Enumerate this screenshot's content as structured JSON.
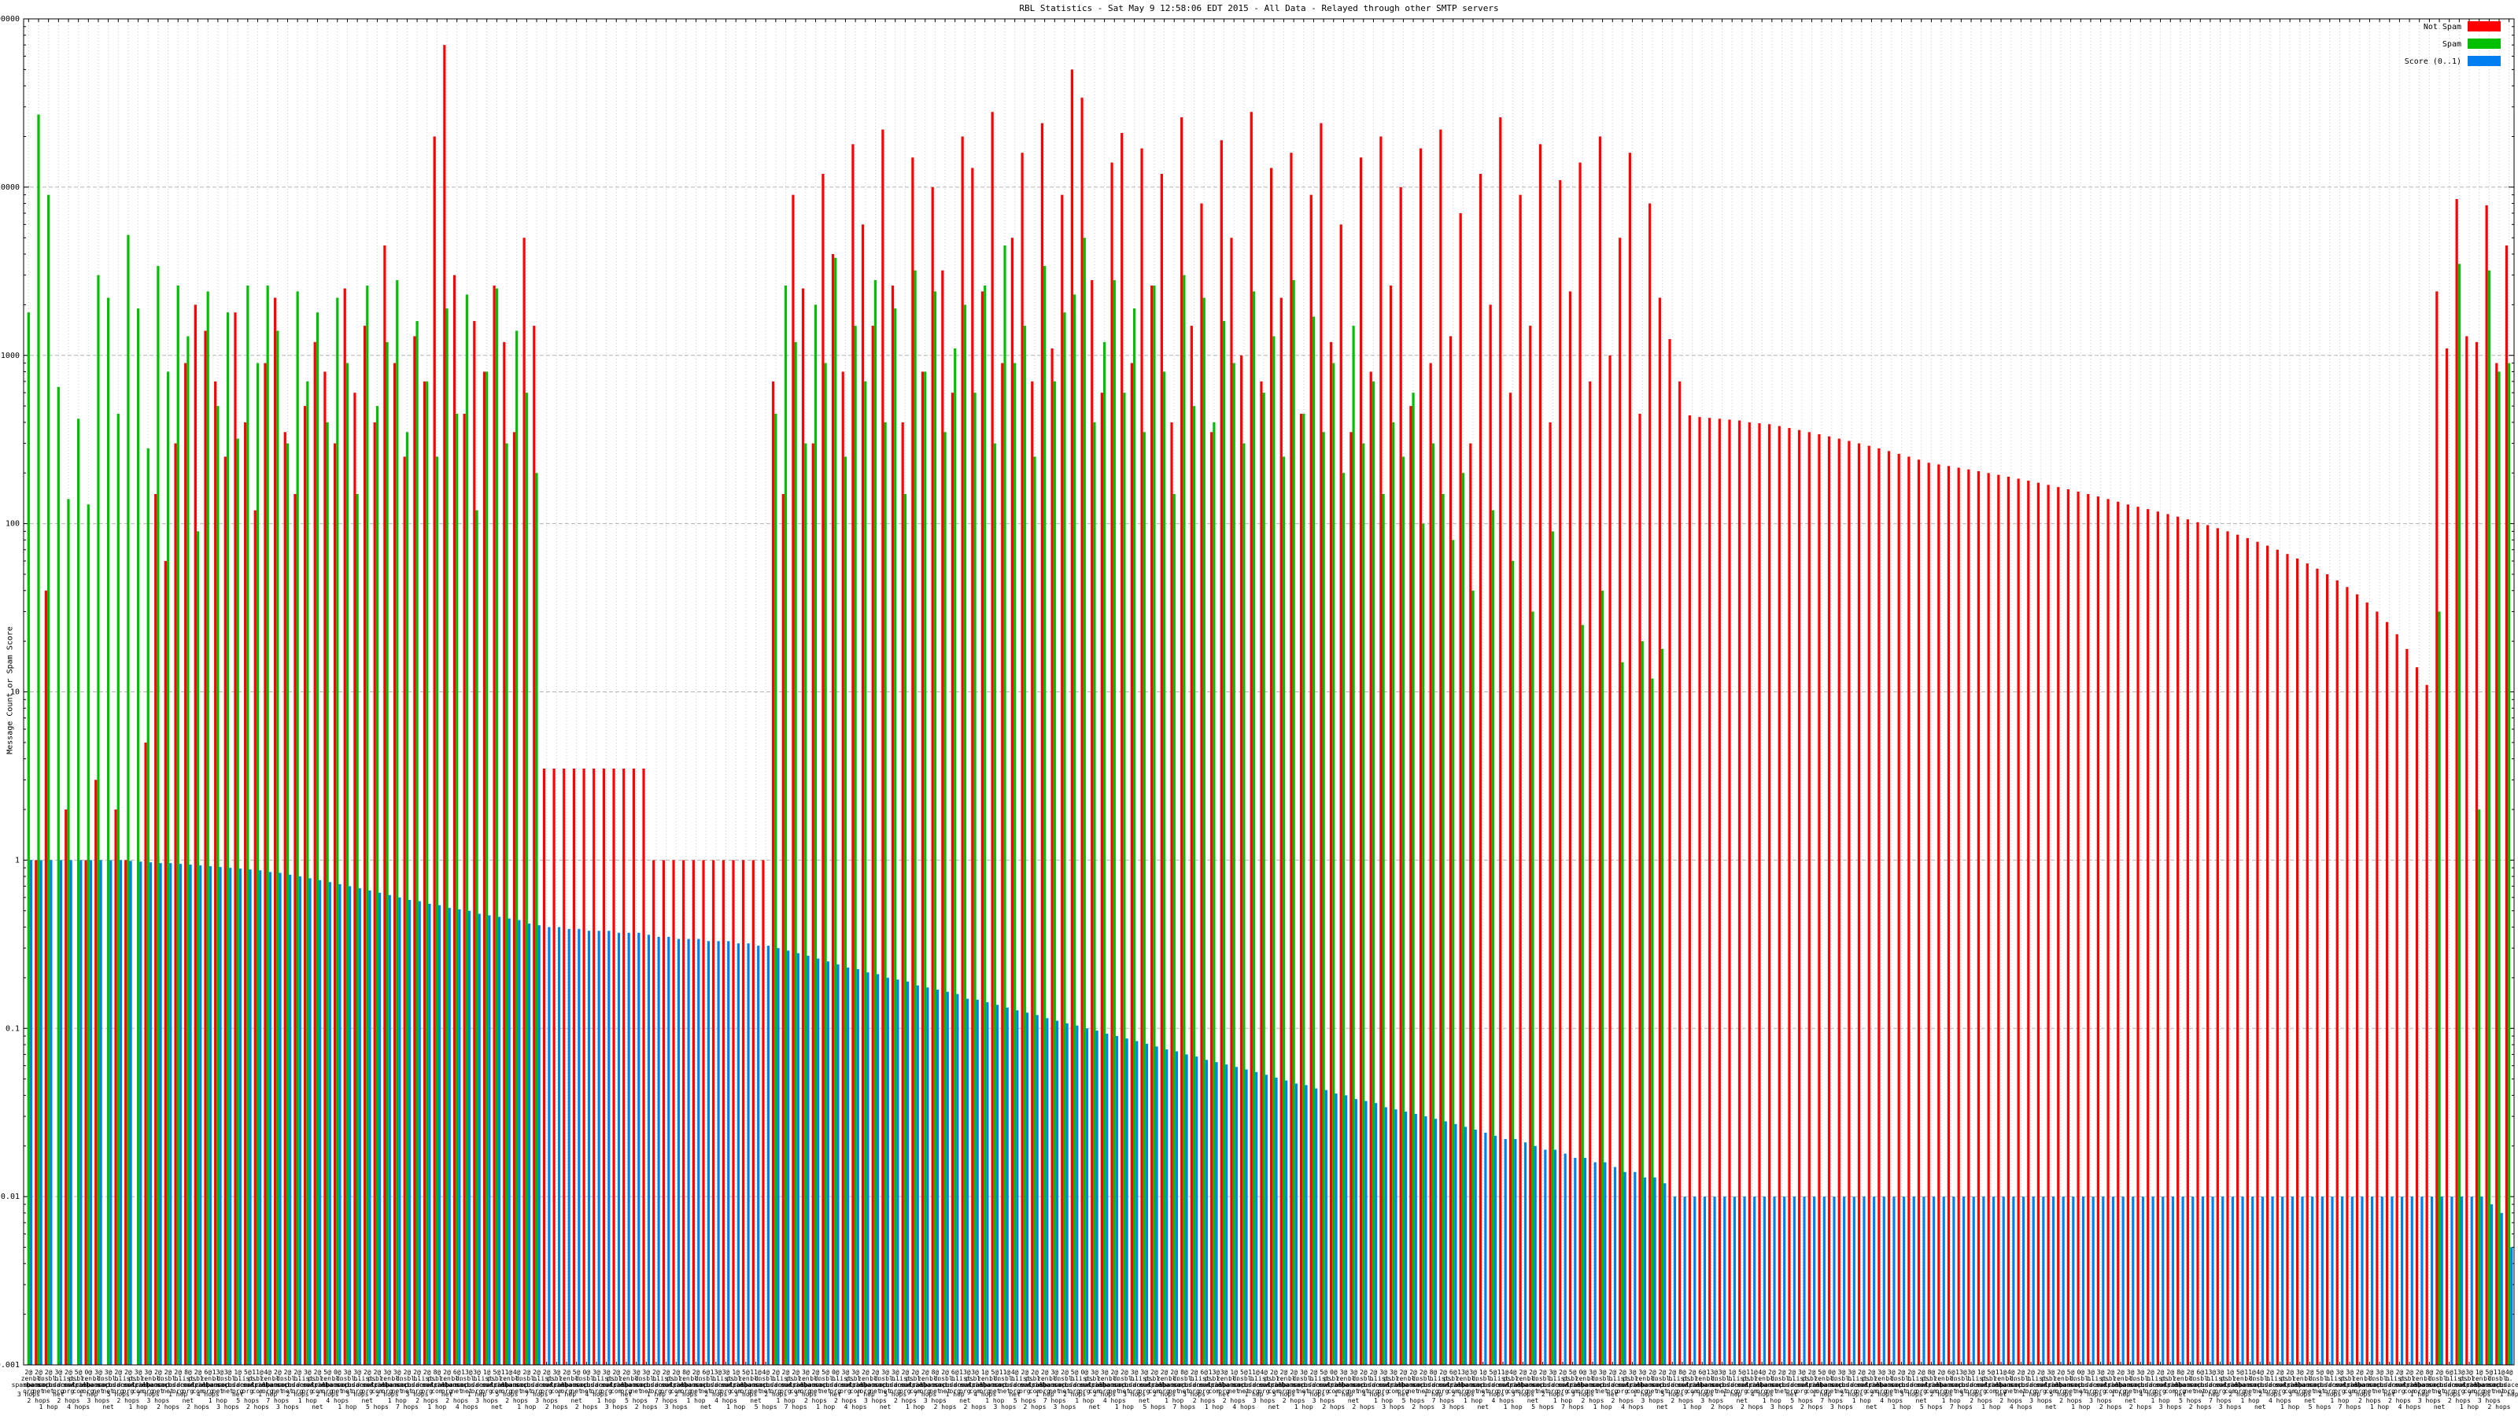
{
  "chart_data": {
    "type": "bar",
    "title": "RBL Statistics - Sat May  9 12:58:06 EDT 2015 - All Data - Relayed through other SMTP servers",
    "ylabel": "Message Count or Spam Score",
    "y_scale": "log",
    "ylim": [
      0.001,
      100000
    ],
    "y_tick_labels": [
      "100000",
      "10000",
      "1000",
      "100",
      "10",
      "1",
      "0.1",
      "0.01",
      "0.001"
    ],
    "grid": true,
    "legend_position": "top-right-inside",
    "series": [
      {
        "name": "Not Spam",
        "color": "#ff0000",
        "values": [
          0,
          1,
          40,
          0,
          2,
          0,
          1,
          3,
          0,
          2,
          1,
          0,
          5,
          150,
          60,
          300,
          900,
          2000,
          1400,
          700,
          250,
          1800,
          400,
          120,
          900,
          2200,
          350,
          150,
          500,
          1200,
          800,
          300,
          2500,
          600,
          1500,
          400,
          4500,
          900,
          250,
          1300,
          700,
          20000,
          70000,
          3000,
          450,
          1600,
          800,
          2600,
          1200,
          350,
          5000,
          1500,
          3.5,
          3.5,
          3.5,
          3.5,
          3.5,
          3.5,
          3.5,
          3.5,
          3.5,
          3.5,
          3.5,
          1,
          1,
          1,
          1,
          1,
          1,
          1,
          1,
          1,
          1,
          1,
          1,
          700,
          150,
          9000,
          2500,
          300,
          12000,
          4000,
          800,
          18000,
          6000,
          1500,
          22000,
          2600,
          400,
          15000,
          800,
          10000,
          3200,
          600,
          20000,
          13000,
          2400,
          28000,
          900,
          5000,
          16000,
          700,
          24000,
          1100,
          9000,
          50000,
          34000,
          2800,
          600,
          14000,
          21000,
          900,
          17000,
          2600,
          12000,
          400,
          26000,
          1500,
          8000,
          350,
          19000,
          5000,
          1000,
          28000,
          700,
          13000,
          2200,
          16000,
          450,
          9000,
          24000,
          1200,
          6000,
          350,
          15000,
          800,
          20000,
          2600,
          10000,
          500,
          17000,
          900,
          22000,
          1300,
          7000,
          300,
          12000,
          2000,
          26000,
          600,
          9000,
          1500,
          18000,
          400,
          11000,
          2400,
          14000,
          700,
          20000,
          1000,
          5000,
          16000,
          450,
          8000,
          2200,
          1250,
          700,
          440,
          430,
          425,
          420,
          415,
          410,
          400,
          395,
          390,
          380,
          370,
          360,
          350,
          340,
          330,
          320,
          310,
          300,
          290,
          280,
          270,
          260,
          250,
          240,
          230,
          225,
          220,
          215,
          210,
          205,
          200,
          195,
          190,
          185,
          180,
          175,
          170,
          165,
          160,
          155,
          150,
          145,
          140,
          135,
          130,
          126,
          122,
          118,
          114,
          110,
          106,
          102,
          98,
          94,
          90,
          86,
          82,
          78,
          74,
          70,
          66,
          62,
          58,
          54,
          50,
          46,
          42,
          38,
          34,
          30,
          26,
          22,
          18,
          14,
          11,
          2400,
          1100,
          8500,
          1300,
          1200,
          7800,
          900,
          4500
        ]
      },
      {
        "name": "Spam",
        "color": "#00bf00",
        "values": [
          1800,
          27000,
          9000,
          650,
          140,
          420,
          130,
          3000,
          2200,
          450,
          5200,
          1900,
          280,
          3400,
          800,
          2600,
          1300,
          90,
          2400,
          500,
          1800,
          320,
          2600,
          900,
          2600,
          1400,
          300,
          2400,
          700,
          1800,
          400,
          2200,
          900,
          150,
          2600,
          500,
          1200,
          2800,
          350,
          1600,
          700,
          250,
          1900,
          450,
          2300,
          120,
          800,
          2500,
          300,
          1400,
          600,
          200,
          0,
          0,
          0,
          0,
          0,
          0,
          0,
          0,
          0,
          0,
          0,
          0,
          0,
          0,
          0,
          0,
          0,
          0,
          0,
          0,
          0,
          0,
          0,
          450,
          2600,
          1200,
          300,
          2000,
          900,
          3800,
          250,
          1500,
          700,
          2800,
          400,
          1900,
          150,
          3200,
          800,
          2400,
          350,
          1100,
          2000,
          600,
          2600,
          300,
          4500,
          900,
          1500,
          250,
          3400,
          700,
          1800,
          2300,
          5000,
          400,
          1200,
          2800,
          600,
          1900,
          350,
          2600,
          800,
          150,
          3000,
          500,
          2200,
          400,
          1600,
          900,
          300,
          2400,
          600,
          1300,
          250,
          2800,
          450,
          1700,
          350,
          900,
          200,
          1500,
          300,
          700,
          150,
          400,
          250,
          600,
          100,
          300,
          150,
          80,
          200,
          40,
          0,
          120,
          0,
          60,
          0,
          30,
          0,
          90,
          0,
          0,
          25,
          0,
          40,
          0,
          15,
          0,
          20,
          12,
          18,
          0,
          0,
          0,
          0,
          0,
          0,
          0,
          0,
          0,
          0,
          0,
          0,
          0,
          0,
          0,
          0,
          0,
          0,
          0,
          0,
          0,
          0,
          0,
          0,
          0,
          0,
          0,
          0,
          0,
          0,
          0,
          0,
          0,
          0,
          0,
          0,
          0,
          0,
          0,
          0,
          0,
          0,
          0,
          0,
          0,
          0,
          0,
          0,
          0,
          0,
          0,
          0,
          0,
          0,
          0,
          0,
          0,
          0,
          0,
          0,
          0,
          0,
          0,
          0,
          0,
          0,
          0,
          0,
          0,
          0,
          0,
          0,
          0,
          0,
          0,
          0,
          0,
          30,
          0,
          3500,
          0,
          2,
          3200,
          800,
          900
        ]
      },
      {
        "name": "Score (0..1)",
        "color": "#0080f0",
        "values": [
          1,
          1,
          1,
          1,
          1,
          1,
          1,
          1,
          1,
          1,
          0.99,
          0.98,
          0.97,
          0.96,
          0.96,
          0.95,
          0.94,
          0.93,
          0.92,
          0.91,
          0.9,
          0.89,
          0.88,
          0.87,
          0.85,
          0.84,
          0.82,
          0.8,
          0.78,
          0.76,
          0.74,
          0.72,
          0.7,
          0.68,
          0.66,
          0.64,
          0.62,
          0.6,
          0.58,
          0.57,
          0.55,
          0.54,
          0.52,
          0.51,
          0.5,
          0.48,
          0.47,
          0.46,
          0.45,
          0.44,
          0.42,
          0.41,
          0.4,
          0.4,
          0.39,
          0.39,
          0.38,
          0.38,
          0.38,
          0.37,
          0.37,
          0.37,
          0.36,
          0.35,
          0.35,
          0.34,
          0.34,
          0.34,
          0.33,
          0.33,
          0.33,
          0.32,
          0.32,
          0.31,
          0.31,
          0.3,
          0.29,
          0.28,
          0.27,
          0.26,
          0.25,
          0.24,
          0.23,
          0.225,
          0.215,
          0.21,
          0.2,
          0.195,
          0.19,
          0.18,
          0.175,
          0.17,
          0.165,
          0.16,
          0.15,
          0.148,
          0.143,
          0.138,
          0.133,
          0.128,
          0.124,
          0.12,
          0.115,
          0.111,
          0.107,
          0.104,
          0.1,
          0.097,
          0.093,
          0.09,
          0.087,
          0.084,
          0.081,
          0.078,
          0.075,
          0.073,
          0.07,
          0.068,
          0.065,
          0.063,
          0.061,
          0.059,
          0.057,
          0.055,
          0.053,
          0.051,
          0.049,
          0.047,
          0.046,
          0.044,
          0.043,
          0.041,
          0.04,
          0.038,
          0.037,
          0.036,
          0.034,
          0.033,
          0.032,
          0.031,
          0.03,
          0.029,
          0.028,
          0.027,
          0.026,
          0.025,
          0.024,
          0.023,
          0.022,
          0.022,
          0.021,
          0.02,
          0.019,
          0.019,
          0.018,
          0.017,
          0.017,
          0.016,
          0.016,
          0.015,
          0.014,
          0.014,
          0.013,
          0.013,
          0.012,
          0.01,
          0.01,
          0.01,
          0.01,
          0.01,
          0.01,
          0.01,
          0.01,
          0.01,
          0.01,
          0.01,
          0.01,
          0.01,
          0.01,
          0.01,
          0.01,
          0.01,
          0.01,
          0.01,
          0.01,
          0.01,
          0.01,
          0.01,
          0.01,
          0.01,
          0.01,
          0.01,
          0.01,
          0.01,
          0.01,
          0.01,
          0.01,
          0.01,
          0.01,
          0.01,
          0.01,
          0.01,
          0.01,
          0.01,
          0.01,
          0.01,
          0.01,
          0.01,
          0.01,
          0.01,
          0.01,
          0.01,
          0.01,
          0.01,
          0.01,
          0.01,
          0.01,
          0.01,
          0.01,
          0.01,
          0.01,
          0.01,
          0.01,
          0.01,
          0.01,
          0.01,
          0.01,
          0.01,
          0.01,
          0.01,
          0.01,
          0.01,
          0.01,
          0.01,
          0.01,
          0.01,
          0.01,
          0.01,
          0.01,
          0.01,
          0.01,
          0.01,
          0.01,
          0.01,
          0.01,
          0.01,
          0.01,
          0.009,
          0.008,
          0.005
        ]
      }
    ],
    "x_tick_label_parts": {
      "count_pattern": [
        2,
        2,
        2,
        3,
        2,
        5,
        0,
        3,
        3,
        2,
        2,
        3,
        3,
        2,
        2,
        2,
        8,
        2,
        6,
        13,
        3,
        1,
        5,
        11,
        4
      ],
      "rbl_names": [
        "zen.spamhaus.org",
        "bl.spamcop.net",
        "dnsbl.sorbs.net",
        "b.barracudacentral.org",
        "list.dnswl.org",
        "psbl.surriel.com"
      ],
      "hops_labels": [
        "3 hops",
        "2 hops",
        "1 hop",
        "net",
        "2 hops",
        "4 hops",
        "1 hop",
        "3 hops",
        "net",
        "5 hops",
        "2 hops",
        "1 hop",
        "7 hops"
      ]
    }
  }
}
